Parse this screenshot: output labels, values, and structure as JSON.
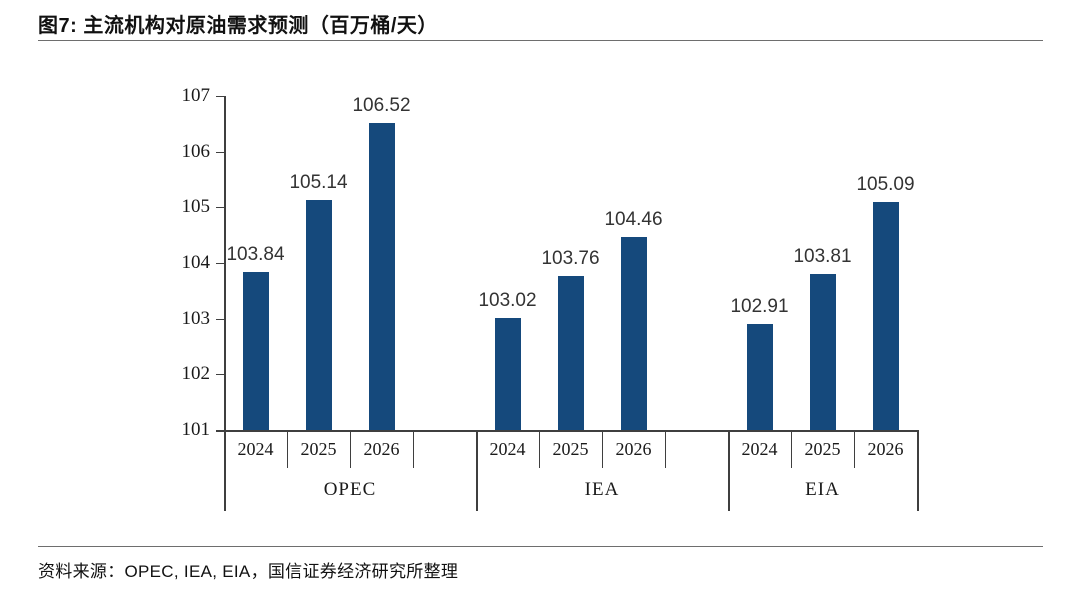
{
  "header": {
    "title": "图7: 主流机构对原油需求预测（百万桶/天）"
  },
  "footer": {
    "source": "资料来源：OPEC, IEA, EIA，国信证券经济研究所整理"
  },
  "colors": {
    "bar": "#15497C",
    "axis": "#3F3F3F",
    "rule": "#6E6E6E",
    "text": "#1A1A1A"
  },
  "chart_data": {
    "type": "bar",
    "title": "主流机构对原油需求预测（百万桶/天）",
    "unit": "百万桶/天",
    "ylim": [
      101,
      107
    ],
    "yticks": [
      101,
      102,
      103,
      104,
      105,
      106,
      107
    ],
    "grid": false,
    "legend": false,
    "bar_color": "#15497C",
    "value_labels": true,
    "categories": [
      "2024",
      "2025",
      "2026"
    ],
    "groups": [
      {
        "label": "OPEC",
        "categories": [
          "2024",
          "2025",
          "2026"
        ],
        "values": [
          103.84,
          105.14,
          106.52
        ],
        "trailing_blank_cell": true
      },
      {
        "label": "IEA",
        "categories": [
          "2024",
          "2025",
          "2026"
        ],
        "values": [
          103.02,
          103.76,
          104.46
        ],
        "trailing_blank_cell": true
      },
      {
        "label": "EIA",
        "categories": [
          "2024",
          "2025",
          "2026"
        ],
        "values": [
          102.91,
          103.81,
          105.09
        ],
        "trailing_blank_cell": false
      }
    ]
  }
}
